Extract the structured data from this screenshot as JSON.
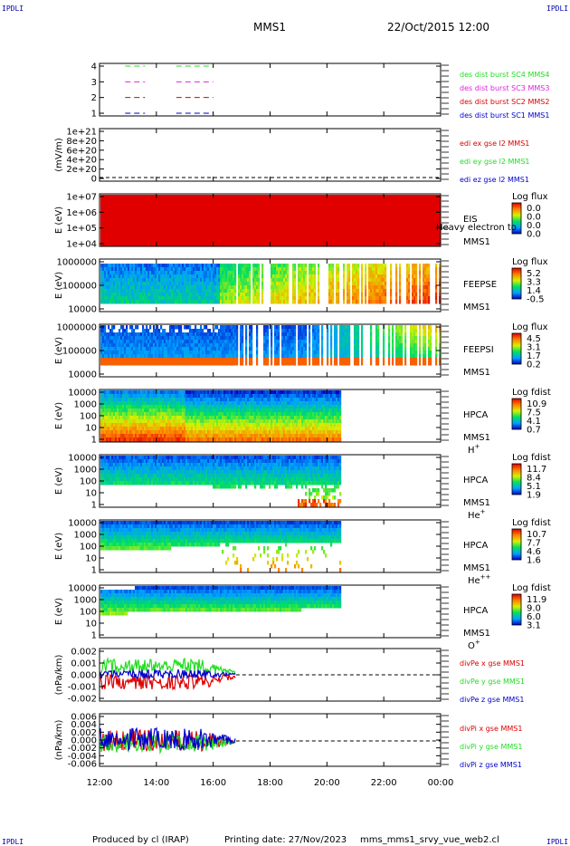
{
  "header": {
    "corner_tl": "IPDLI",
    "corner_tr": "IPDLI",
    "corner_bl": "IPDLI",
    "corner_br": "IPDLI",
    "spacecraft": "MMS1",
    "datetime": "22/Oct/2015 12:00"
  },
  "footer": {
    "produced_by": "Produced by cl (IRAP)",
    "printing_date": "Printing date: 27/Nov/2023",
    "script_name": "mms_mms1_srvy_vue_web2.cl"
  },
  "colors": {
    "blue": "#0000cc",
    "red": "#dd0000",
    "green": "#22dd22",
    "magenta": "#dd22dd"
  },
  "chart_data": {
    "type": "stacked-timeseries",
    "time_axis": {
      "ticks": [
        "12:00",
        "14:00",
        "16:00",
        "18:00",
        "20:00",
        "22:00",
        "00:00"
      ],
      "range_hours": [
        12,
        24
      ]
    },
    "panels": [
      {
        "id": "burst",
        "type": "timeline",
        "yticks": [
          "4",
          "3",
          "2",
          "1"
        ],
        "series": [
          {
            "name": "des dist burst SC1 MMS1",
            "level": 1,
            "color": "#0000cc",
            "segments": [
              [
                12.9,
                13.6
              ],
              [
                14.7,
                16.0
              ]
            ]
          },
          {
            "name": "des dist burst SC2 MMS2",
            "level": 2,
            "color": "#dd0000",
            "segments": [
              [
                12.9,
                13.6
              ],
              [
                14.7,
                16.0
              ]
            ]
          },
          {
            "name": "des dist burst SC3 MMS3",
            "level": 3,
            "color": "#dd22dd",
            "segments": [
              [
                12.9,
                13.6
              ],
              [
                14.7,
                16.0
              ]
            ]
          },
          {
            "name": "des dist burst SC4 MMS4",
            "level": 4,
            "color": "#22dd22",
            "segments": [
              [
                12.9,
                13.6
              ],
              [
                14.7,
                16.0
              ]
            ]
          }
        ]
      },
      {
        "id": "edi",
        "type": "line",
        "ylabel": "(mV/m)",
        "yticks": [
          "1e+21",
          "8e+20",
          "6e+20",
          "4e+20",
          "2e+20",
          "0"
        ],
        "series_labels": [
          {
            "name": "edi ex gse l2 MMS1",
            "color": "#dd0000"
          },
          {
            "name": "edi ey gse l2 MMS1",
            "color": "#22dd22"
          },
          {
            "name": "edi ez gse l2 MMS1",
            "color": "#0000cc"
          }
        ]
      },
      {
        "id": "eis",
        "type": "spectrogram",
        "ylabel": "E (eV)",
        "yticks": [
          "1e+07",
          "1e+06",
          "1e+05",
          "1e+04"
        ],
        "instrument": "EIS",
        "instrument_overlay": "Heavy electron to",
        "spacecraft": "MMS1",
        "colorbar_title": "Log flux",
        "colorbar_values": [
          "0.0",
          "0.0",
          "0.0",
          "0.0"
        ]
      },
      {
        "id": "feepse",
        "type": "spectrogram",
        "ylabel": "E (eV)",
        "yticks": [
          "1000000",
          "100000",
          "10000"
        ],
        "instrument": "FEEPSE",
        "spacecraft": "MMS1",
        "colorbar_title": "Log flux",
        "colorbar_values": [
          "5.2",
          "3.3",
          "1.4",
          "-0.5"
        ]
      },
      {
        "id": "feepsi",
        "type": "spectrogram",
        "ylabel": "E (eV)",
        "yticks": [
          "1000000",
          "100000",
          "10000"
        ],
        "instrument": "FEEPSI",
        "spacecraft": "MMS1",
        "colorbar_title": "Log flux",
        "colorbar_values": [
          "4.5",
          "3.1",
          "1.7",
          "0.2"
        ]
      },
      {
        "id": "hpca_h",
        "type": "spectrogram",
        "ylabel": "E (eV)",
        "yticks": [
          "10000",
          "1000",
          "100",
          "10",
          "1"
        ],
        "instrument": "HPCA",
        "spacecraft": "MMS1",
        "species": "H",
        "charge": "+",
        "colorbar_title": "Log fdist",
        "colorbar_values": [
          "10.9",
          "7.5",
          "4.1",
          "0.7"
        ]
      },
      {
        "id": "hpca_he",
        "type": "spectrogram",
        "ylabel": "E (eV)",
        "yticks": [
          "10000",
          "1000",
          "100",
          "10",
          "1"
        ],
        "instrument": "HPCA",
        "spacecraft": "MMS1",
        "species": "He",
        "charge": "+",
        "colorbar_title": "Log fdist",
        "colorbar_values": [
          "11.7",
          "8.4",
          "5.1",
          "1.9"
        ]
      },
      {
        "id": "hpca_hepp",
        "type": "spectrogram",
        "ylabel": "E (eV)",
        "yticks": [
          "10000",
          "1000",
          "100",
          "10",
          "1"
        ],
        "instrument": "HPCA",
        "spacecraft": "MMS1",
        "species": "He",
        "charge": "++",
        "colorbar_title": "Log fdist",
        "colorbar_values": [
          "10.7",
          "7.7",
          "4.6",
          "1.6"
        ]
      },
      {
        "id": "hpca_o",
        "type": "spectrogram",
        "ylabel": "E (eV)",
        "yticks": [
          "10000",
          "1000",
          "100",
          "10",
          "1"
        ],
        "instrument": "HPCA",
        "spacecraft": "MMS1",
        "species": "O",
        "charge": "+",
        "colorbar_title": "Log fdist",
        "colorbar_values": [
          "11.9",
          "9.0",
          "6.0",
          "3.1"
        ]
      },
      {
        "id": "divpe",
        "type": "line",
        "ylabel": "(nPa/km)",
        "yticks": [
          "0.002",
          "0.001",
          "0.000",
          "-0.001",
          "-0.002"
        ],
        "series_labels": [
          {
            "name": "divPe x gse MMS1",
            "color": "#dd0000"
          },
          {
            "name": "divPe y gse MMS1",
            "color": "#22dd22"
          },
          {
            "name": "divPe z gse MMS1",
            "color": "#0000cc"
          }
        ]
      },
      {
        "id": "divpi",
        "type": "line",
        "ylabel": "(nPa/km)",
        "yticks": [
          "0.006",
          "0.004",
          "0.002",
          "0.000",
          "-0.002",
          "-0.004",
          "-0.006"
        ],
        "series_labels": [
          {
            "name": "divPi x gse MMS1",
            "color": "#dd0000"
          },
          {
            "name": "divPi y gse MMS1",
            "color": "#22dd22"
          },
          {
            "name": "divPi z gse MMS1",
            "color": "#0000cc"
          }
        ]
      }
    ]
  }
}
